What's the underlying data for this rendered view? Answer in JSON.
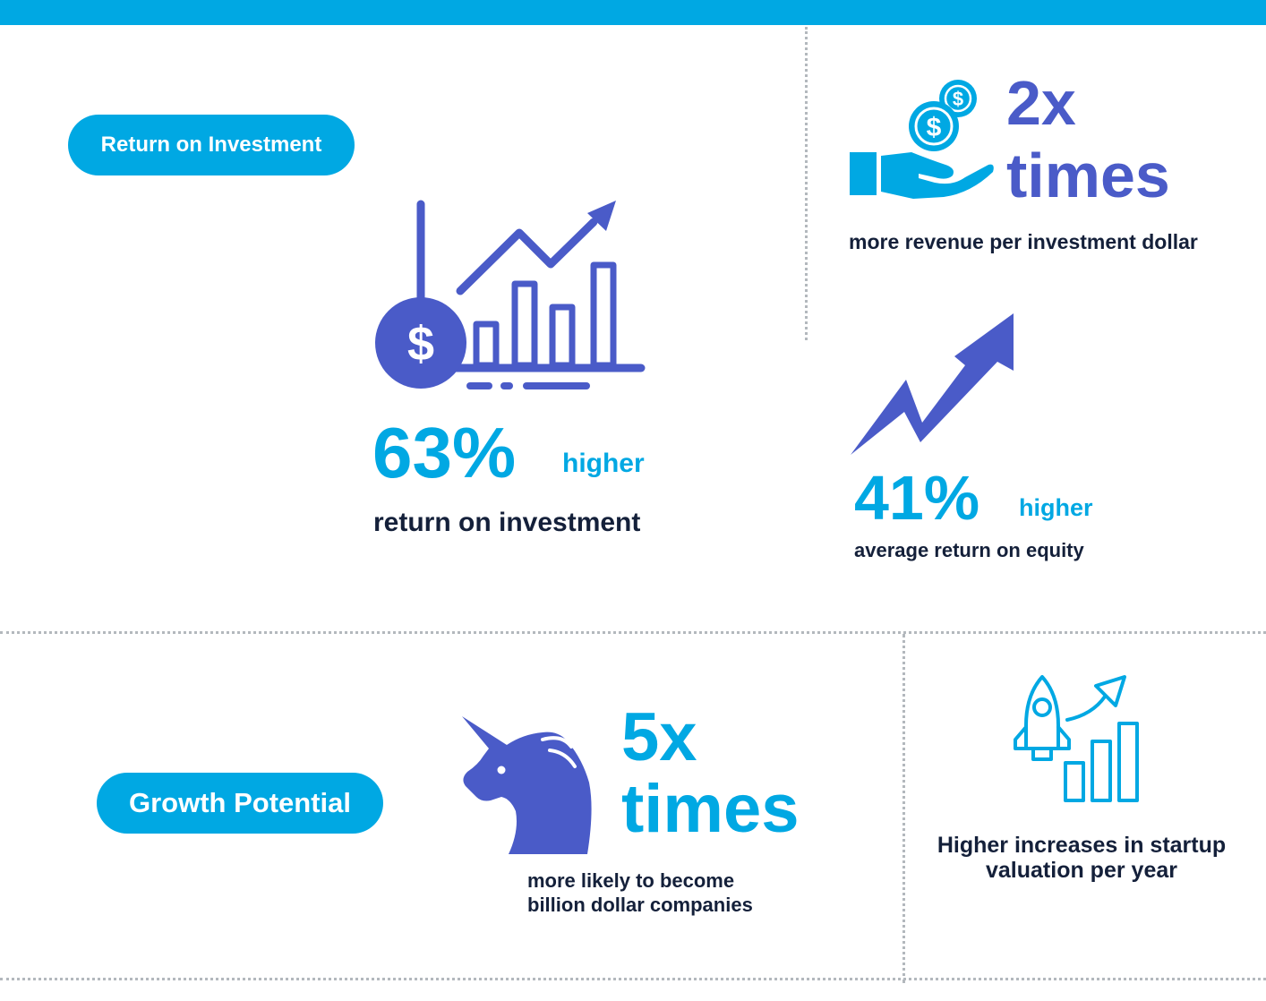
{
  "sections": {
    "roi": {
      "label": "Return on Investment"
    },
    "growth": {
      "label": "Growth Potential"
    }
  },
  "stats": {
    "roi_63": {
      "value": "63%",
      "qualifier": "higher",
      "description": "return on investment",
      "icon": "dollar-bar-chart-icon"
    },
    "revenue_2x": {
      "value_line1": "2x",
      "value_line2": "times",
      "description": "more revenue per investment dollar",
      "icon": "hand-coins-icon"
    },
    "equity_41": {
      "value": "41%",
      "qualifier": "higher",
      "description": "average return on equity",
      "icon": "trend-arrow-icon"
    },
    "unicorn_5x": {
      "value_line1": "5x",
      "value_line2": "times",
      "description_line1": "more likely to become",
      "description_line2": "billion dollar companies",
      "icon": "unicorn-icon"
    },
    "valuation": {
      "description_line1": "Higher increases in startup",
      "description_line2": "valuation per year",
      "icon": "rocket-growth-icon"
    }
  },
  "colors": {
    "cyan": "#00a8e3",
    "purple": "#4a5bc8",
    "navy": "#14203a",
    "dots": "#b3b8bd"
  }
}
